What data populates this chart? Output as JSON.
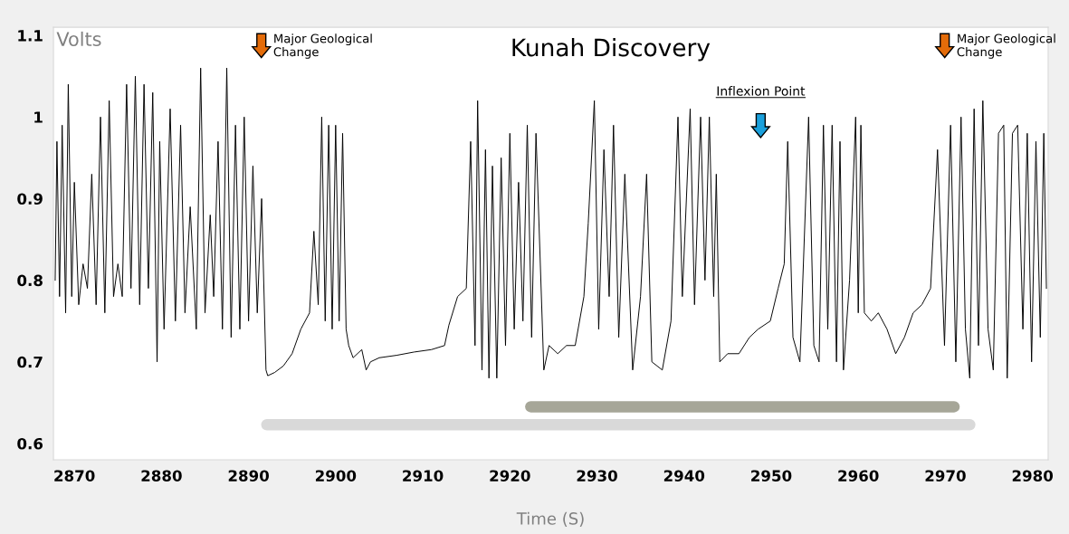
{
  "chart_data": {
    "type": "line",
    "title": "Kunah Discovery",
    "xlabel": "Time (S)",
    "ylabel": "Volts",
    "xlim": [
      2867.6,
      2981.8
    ],
    "ylim": [
      0.58,
      1.11
    ],
    "xticks": [
      2870,
      2880,
      2890,
      2900,
      2910,
      2920,
      2930,
      2940,
      2950,
      2960,
      2970,
      2980
    ],
    "yticks": [
      0.6,
      0.7,
      0.8,
      0.9,
      1,
      1.1
    ],
    "grid": false,
    "legend": false,
    "marker": "none",
    "line_style": "solid",
    "annotations": [
      "Major Geological Change",
      "Inflexion Point",
      "Major Geological Change"
    ],
    "series": [
      {
        "type": "line",
        "color": "#a6a698",
        "x": [
          2922.4,
          2971.0
        ],
        "values": [
          0.645,
          0.645
        ]
      },
      {
        "type": "line",
        "color": "#d9d9d9",
        "x": [
          2892.1,
          2972.8
        ],
        "values": [
          0.623,
          0.623
        ]
      },
      {
        "color": "#000000",
        "x": [
          2867.8,
          2868.0,
          2868.3,
          2868.6,
          2869.0,
          2869.3,
          2869.7,
          2870.0,
          2870.5,
          2871.0,
          2871.5,
          2872.0,
          2872.5,
          2873.0,
          2873.5,
          2874.0,
          2874.5,
          2875.0,
          2875.5,
          2876.0,
          2876.5,
          2877.0,
          2877.5,
          2878.0,
          2878.5,
          2879.0,
          2879.5,
          2879.8,
          2880.3,
          2881.0,
          2881.6,
          2882.2,
          2882.7,
          2883.3,
          2884.0,
          2884.5,
          2885.0,
          2885.6,
          2886.0,
          2886.5,
          2887.0,
          2887.5,
          2888.0,
          2888.5,
          2889.0,
          2889.5,
          2890.0,
          2890.5,
          2891.0,
          2891.5,
          2892.0,
          2892.2,
          2893.0,
          2894.0,
          2895.0,
          2896.0,
          2897.0,
          2897.5,
          2898.0,
          2898.4,
          2898.8,
          2899.2,
          2899.6,
          2900.0,
          2900.4,
          2900.8,
          2901.2,
          2901.5,
          2902.0,
          2903.0,
          2903.5,
          2904.0,
          2905.0,
          2907.0,
          2909.0,
          2911.0,
          2912.5,
          2913.0,
          2914.0,
          2915.0,
          2915.5,
          2916.0,
          2916.3,
          2916.8,
          2917.2,
          2917.6,
          2918.0,
          2918.5,
          2919.0,
          2919.5,
          2920.0,
          2920.5,
          2921.0,
          2921.5,
          2922.0,
          2922.5,
          2923.0,
          2923.9,
          2924.5,
          2925.5,
          2926.5,
          2927.5,
          2928.5,
          2929.0,
          2929.7,
          2930.2,
          2930.8,
          2931.4,
          2931.9,
          2932.5,
          2933.2,
          2934.1,
          2935.0,
          2935.7,
          2936.3,
          2937.5,
          2938.5,
          2939.3,
          2939.8,
          2940.7,
          2941.2,
          2941.9,
          2942.4,
          2942.9,
          2943.4,
          2943.7,
          2944.1,
          2945.0,
          2946.3,
          2947.5,
          2948.5,
          2949.9,
          2950.8,
          2951.5,
          2951.9,
          2952.5,
          2953.3,
          2954.3,
          2954.9,
          2955.5,
          2956.0,
          2956.5,
          2957.0,
          2957.5,
          2957.9,
          2958.3,
          2959.0,
          2959.7,
          2960.0,
          2960.3,
          2960.7,
          2961.5,
          2962.3,
          2963.3,
          2964.3,
          2965.3,
          2966.3,
          2967.3,
          2968.3,
          2969.1,
          2969.9,
          2970.6,
          2971.2,
          2971.8,
          2972.3,
          2972.8,
          2973.3,
          2973.8,
          2974.3,
          2974.9,
          2975.5,
          2976.1,
          2976.7,
          2977.1,
          2977.7,
          2978.3,
          2978.9,
          2979.4,
          2979.9,
          2980.4,
          2980.9,
          2981.3,
          2981.6
        ],
        "values": [
          0.8,
          0.97,
          0.78,
          0.99,
          0.76,
          1.04,
          0.78,
          0.92,
          0.77,
          0.82,
          0.79,
          0.93,
          0.77,
          1.0,
          0.76,
          1.02,
          0.78,
          0.82,
          0.78,
          1.04,
          0.79,
          1.05,
          0.77,
          1.04,
          0.79,
          1.03,
          0.7,
          0.97,
          0.74,
          1.01,
          0.75,
          0.99,
          0.76,
          0.89,
          0.74,
          1.06,
          0.76,
          0.88,
          0.78,
          0.97,
          0.74,
          1.06,
          0.73,
          0.99,
          0.74,
          1.0,
          0.75,
          0.94,
          0.76,
          0.9,
          0.69,
          0.683,
          0.687,
          0.695,
          0.71,
          0.74,
          0.76,
          0.86,
          0.77,
          1.0,
          0.75,
          0.99,
          0.74,
          0.99,
          0.75,
          0.98,
          0.74,
          0.72,
          0.705,
          0.715,
          0.69,
          0.7,
          0.705,
          0.708,
          0.712,
          0.715,
          0.72,
          0.745,
          0.78,
          0.79,
          0.97,
          0.72,
          1.02,
          0.69,
          0.96,
          0.68,
          0.94,
          0.68,
          0.95,
          0.72,
          0.98,
          0.74,
          0.92,
          0.75,
          0.99,
          0.73,
          0.98,
          0.69,
          0.72,
          0.71,
          0.72,
          0.72,
          0.78,
          0.87,
          1.02,
          0.74,
          0.96,
          0.78,
          0.99,
          0.73,
          0.93,
          0.69,
          0.78,
          0.93,
          0.7,
          0.69,
          0.75,
          1.0,
          0.78,
          1.01,
          0.77,
          1.0,
          0.8,
          1.0,
          0.78,
          0.93,
          0.7,
          0.71,
          0.71,
          0.73,
          0.74,
          0.75,
          0.79,
          0.82,
          0.97,
          0.73,
          0.7,
          1.0,
          0.72,
          0.7,
          0.99,
          0.74,
          0.99,
          0.7,
          0.97,
          0.69,
          0.8,
          1.0,
          0.76,
          0.99,
          0.76,
          0.75,
          0.76,
          0.74,
          0.71,
          0.73,
          0.76,
          0.77,
          0.79,
          0.96,
          0.72,
          0.99,
          0.7,
          1.0,
          0.74,
          0.68,
          1.01,
          0.72,
          1.02,
          0.74,
          0.69,
          0.98,
          0.99,
          0.68,
          0.98,
          0.99,
          0.74,
          0.98,
          0.7,
          0.97,
          0.73,
          0.98,
          0.79
        ]
      }
    ]
  }
}
